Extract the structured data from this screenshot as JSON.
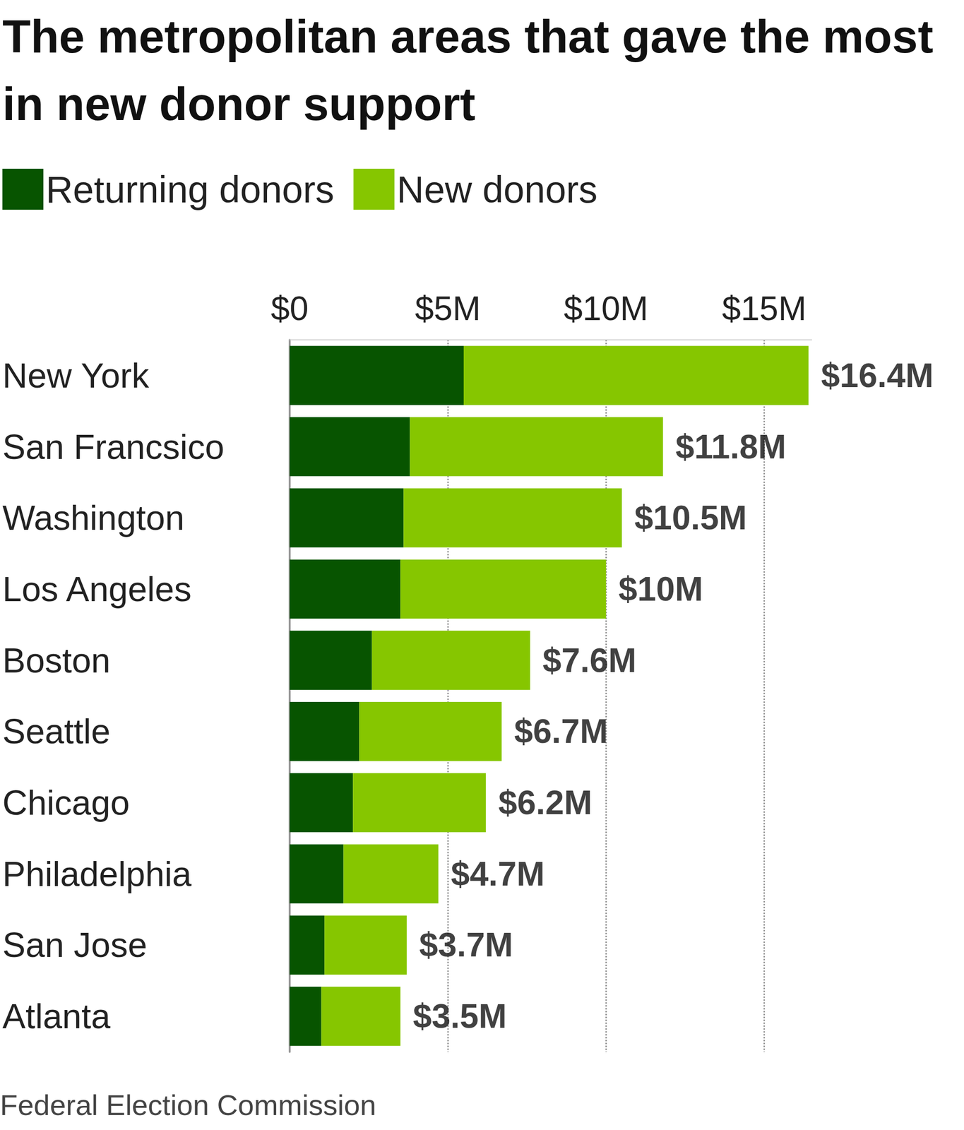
{
  "chart_data": {
    "type": "bar",
    "title": "The metropolitan areas that gave the most in new donor support",
    "orientation": "horizontal",
    "stacked": true,
    "categories": [
      "New York",
      "San Francsico",
      "Washington",
      "Los Angeles",
      "Boston",
      "Seattle",
      "Chicago",
      "Philadelphia",
      "San Jose",
      "Atlanta"
    ],
    "series": [
      {
        "name": "Returning donors",
        "color": "#075400",
        "values": [
          5.5,
          3.8,
          3.6,
          3.5,
          2.6,
          2.2,
          2.0,
          1.7,
          1.1,
          1.0
        ]
      },
      {
        "name": "New donors",
        "color": "#86c600",
        "values": [
          10.9,
          8.0,
          6.9,
          6.5,
          5.0,
          4.5,
          4.2,
          3.0,
          2.6,
          2.5
        ]
      }
    ],
    "totals": [
      16.4,
      11.8,
      10.5,
      10,
      7.6,
      6.7,
      6.2,
      4.7,
      3.7,
      3.5
    ],
    "total_labels": [
      "$16.4M",
      "$11.8M",
      "$10.5M",
      "$10M",
      "$7.6M",
      "$6.7M",
      "$6.2M",
      "$4.7M",
      "$3.7M",
      "$3.5M"
    ],
    "xlim": [
      0,
      16.5
    ],
    "xticks": [
      {
        "value": 0,
        "label": "$0"
      },
      {
        "value": 5,
        "label": "$5M"
      },
      {
        "value": 10,
        "label": "$10M"
      },
      {
        "value": 15,
        "label": "$15M"
      }
    ],
    "grid": true,
    "legend": "top-left",
    "source": "Federal Election Commission"
  }
}
